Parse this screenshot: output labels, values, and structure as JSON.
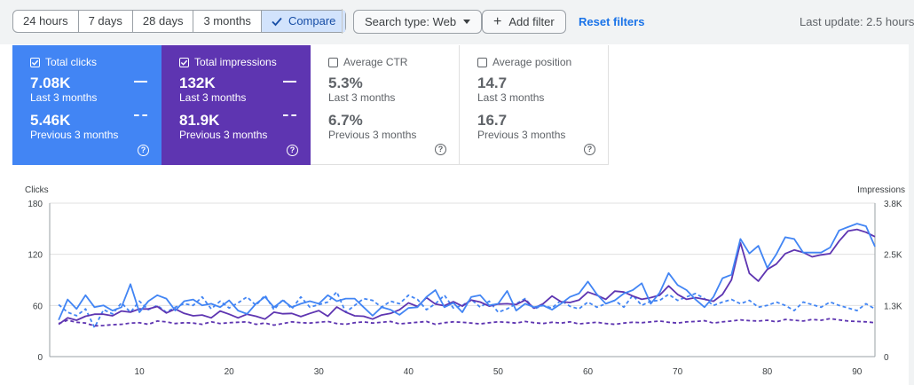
{
  "toolbar": {
    "ranges": [
      "24 hours",
      "7 days",
      "28 days",
      "3 months"
    ],
    "compare_label": "Compare",
    "search_type_label": "Search type: Web",
    "add_filter_label": "Add filter",
    "reset_label": "Reset filters",
    "last_update": "Last update: 2.5 hours"
  },
  "cards": {
    "clicks": {
      "label": "Total clicks",
      "current": "7.08K",
      "current_period": "Last 3 months",
      "previous": "5.46K",
      "previous_period": "Previous 3 months",
      "checked": true,
      "color": "#4285f4"
    },
    "impressions": {
      "label": "Total impressions",
      "current": "132K",
      "current_period": "Last 3 months",
      "previous": "81.9K",
      "previous_period": "Previous 3 months",
      "checked": true,
      "color": "#5e35b1"
    },
    "ctr": {
      "label": "Average CTR",
      "current": "5.3%",
      "current_period": "Last 3 months",
      "previous": "6.7%",
      "previous_period": "Previous 3 months",
      "checked": false
    },
    "position": {
      "label": "Average position",
      "current": "14.7",
      "current_period": "Last 3 months",
      "previous": "16.7",
      "previous_period": "Previous 3 months",
      "checked": false
    }
  },
  "help_glyph": "?",
  "chart_data": {
    "type": "line",
    "y_left_label": "Clicks",
    "y_right_label": "Impressions",
    "y_left_ticks": [
      "180",
      "120",
      "60",
      "0"
    ],
    "y_left_range": [
      0,
      180
    ],
    "y_right_ticks": [
      "3.8K",
      "2.5K",
      "1.3K",
      "0"
    ],
    "y_right_range": [
      0,
      3800
    ],
    "x_ticks": [
      "10",
      "20",
      "30",
      "40",
      "50",
      "60",
      "70",
      "80",
      "90"
    ],
    "x_range": [
      0,
      92
    ],
    "grid": true,
    "series": [
      {
        "name": "Total clicks",
        "period": "Last 3 months",
        "axis": "left",
        "style": "solid",
        "color": "#4285f4",
        "values": [
          43,
          67,
          56,
          72,
          58,
          60,
          54,
          58,
          85,
          52,
          65,
          72,
          68,
          54,
          65,
          67,
          60,
          62,
          58,
          66,
          54,
          50,
          62,
          70,
          58,
          66,
          58,
          62,
          65,
          62,
          72,
          65,
          68,
          68,
          58,
          48,
          58,
          55,
          49,
          57,
          58,
          70,
          78,
          58,
          63,
          52,
          70,
          72,
          60,
          62,
          77,
          54,
          62,
          58,
          60,
          55,
          62,
          70,
          74,
          88,
          73,
          62,
          66,
          74,
          78,
          86,
          62,
          75,
          98,
          84,
          78,
          67,
          58,
          70,
          92,
          96,
          138,
          121,
          130,
          104,
          120,
          140,
          138,
          122,
          122,
          122,
          128,
          148,
          152,
          156,
          153,
          129
        ]
      },
      {
        "name": "Total impressions",
        "period": "Last 3 months",
        "axis": "right",
        "style": "solid",
        "color": "#5e35b1",
        "values": [
          800,
          960,
          900,
          1000,
          1050,
          1050,
          1010,
          1130,
          1100,
          1180,
          1180,
          1240,
          1080,
          1180,
          1070,
          1010,
          1030,
          960,
          1130,
          1050,
          960,
          1050,
          1000,
          930,
          1100,
          1060,
          1070,
          990,
          1070,
          1140,
          1000,
          1230,
          1100,
          1010,
          1000,
          930,
          1030,
          1070,
          1160,
          1330,
          1240,
          1460,
          1300,
          1260,
          1360,
          1250,
          1400,
          1350,
          1250,
          1300,
          1310,
          1290,
          1400,
          1200,
          1310,
          1500,
          1360,
          1340,
          1400,
          1600,
          1520,
          1420,
          1620,
          1600,
          1500,
          1420,
          1460,
          1520,
          1750,
          1540,
          1420,
          1460,
          1420,
          1370,
          1540,
          1900,
          2820,
          2060,
          1870,
          2160,
          2290,
          2550,
          2640,
          2580,
          2470,
          2520,
          2550,
          2860,
          3110,
          3150,
          3080,
          2970
        ]
      },
      {
        "name": "Total clicks",
        "period": "Previous 3 months",
        "axis": "left",
        "style": "dashed",
        "color": "#4285f4",
        "values": [
          61,
          52,
          48,
          56,
          34,
          55,
          50,
          63,
          52,
          65,
          55,
          60,
          52,
          58,
          62,
          60,
          70,
          56,
          65,
          57,
          63,
          70,
          60,
          72,
          55,
          67,
          56,
          70,
          58,
          61,
          64,
          76,
          52,
          60,
          68,
          66,
          58,
          65,
          62,
          72,
          67,
          55,
          62,
          72,
          57,
          60,
          67,
          58,
          65,
          52,
          56,
          62,
          68,
          56,
          60,
          57,
          66,
          59,
          56,
          64,
          58,
          62,
          66,
          58,
          72,
          60,
          65,
          66,
          73,
          66,
          70,
          74,
          68,
          60,
          64,
          67,
          62,
          66,
          58,
          60,
          64,
          60,
          54,
          64,
          61,
          58,
          64,
          60,
          57,
          54,
          62,
          56
        ]
      },
      {
        "name": "Total impressions",
        "period": "Previous 3 months",
        "axis": "right",
        "style": "dashed",
        "color": "#5e35b1",
        "values": [
          820,
          900,
          850,
          830,
          760,
          770,
          790,
          800,
          830,
          840,
          800,
          880,
          860,
          820,
          840,
          830,
          800,
          860,
          820,
          840,
          850,
          860,
          800,
          830,
          780,
          820,
          860,
          840,
          830,
          850,
          870,
          820,
          800,
          840,
          860,
          830,
          850,
          870,
          810,
          830,
          850,
          870,
          800,
          840,
          860,
          850,
          830,
          810,
          840,
          860,
          850,
          830,
          870,
          840,
          820,
          850,
          830,
          860,
          810,
          830,
          850,
          820,
          800,
          830,
          850,
          840,
          860,
          880,
          850,
          830,
          860,
          870,
          890,
          830,
          860,
          880,
          910,
          890,
          880,
          900,
          860,
          920,
          900,
          880,
          920,
          900,
          940,
          910,
          880,
          870,
          860,
          840
        ]
      }
    ]
  }
}
